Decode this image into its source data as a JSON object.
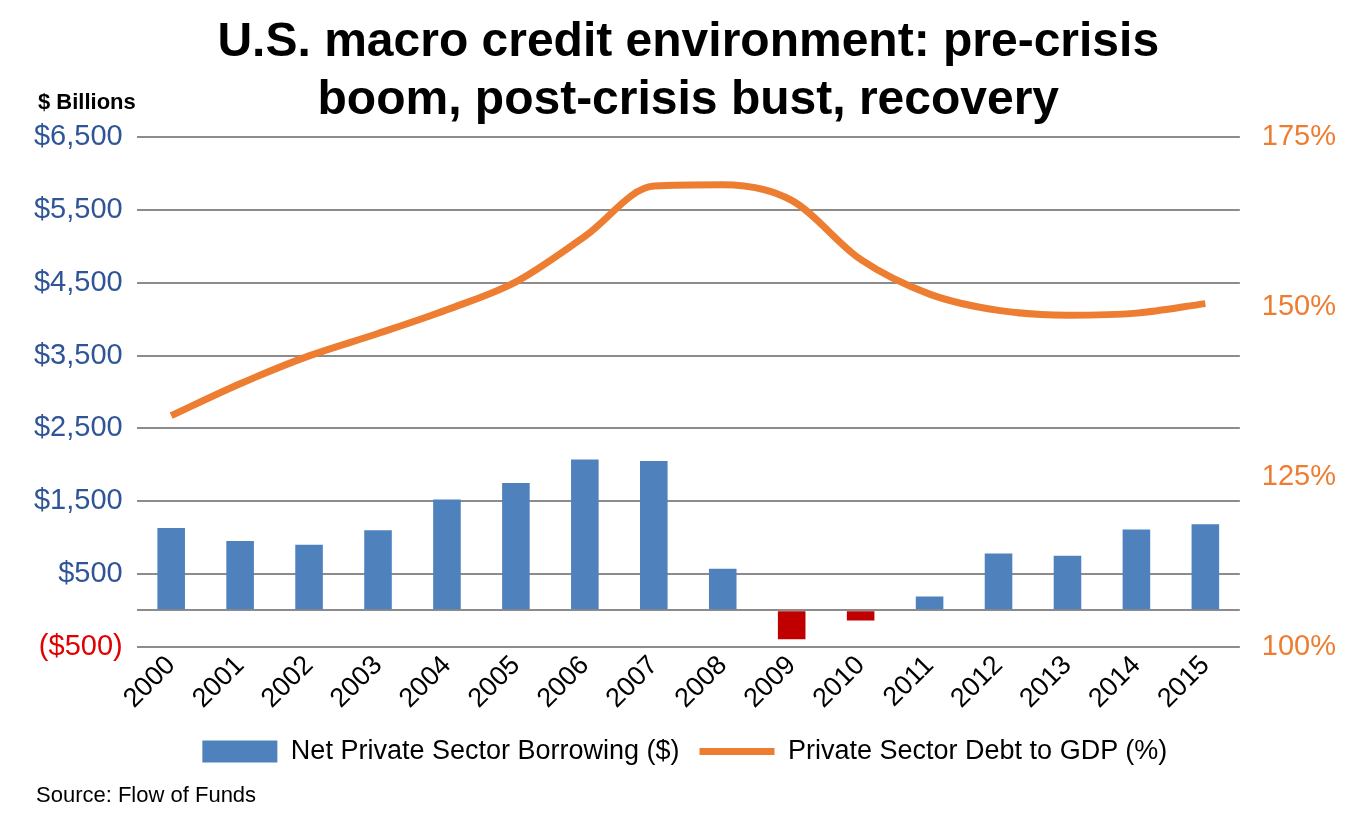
{
  "chart_data": {
    "type": "bar",
    "title": "U.S. macro credit environment: pre-crisis boom, post-crisis bust, recovery",
    "ylabel": "$ Billions",
    "categories": [
      "2000",
      "2001",
      "2002",
      "2003",
      "2004",
      "2005",
      "2006",
      "2007",
      "2008",
      "2009",
      "2010",
      "2011",
      "2012",
      "2013",
      "2014",
      "2015"
    ],
    "series": [
      {
        "name": "Net Private Sector Borrowing ($)",
        "color": "#4f81bd",
        "colors": [
          "#4f81bd",
          "#4f81bd",
          "#4f81bd",
          "#4f81bd",
          "#4f81bd",
          "#4f81bd",
          "#4f81bd",
          "#4f81bd",
          "#4f81bd",
          "#c00000",
          "#c00000",
          "#4f81bd",
          "#4f81bd",
          "#4f81bd",
          "#4f81bd",
          "#4f81bd"
        ],
        "values": [
          1130,
          950,
          900,
          1100,
          1520,
          1750,
          2070,
          2050,
          570,
          -400,
          -140,
          190,
          780,
          750,
          1110,
          1180
        ]
      },
      {
        "name": "Private Sector Debt to GDP (%)",
        "type": "line",
        "axis": "y2",
        "color": "#ed7d31",
        "values": [
          134.0,
          138.7,
          142.8,
          146.1,
          149.6,
          153.7,
          160.4,
          167.8,
          168.0,
          165.7,
          157.0,
          151.9,
          149.5,
          148.8,
          149.1,
          150.5
        ]
      }
    ],
    "ylim": [
      -500,
      6500
    ],
    "yticks": [
      {
        "value": -500,
        "label": "($500)"
      },
      {
        "value": 0,
        "label": null
      },
      {
        "value": 500,
        "label": "$500"
      },
      {
        "value": 1500,
        "label": "$1,500"
      },
      {
        "value": 2500,
        "label": "$2,500"
      },
      {
        "value": 3500,
        "label": "$3,500"
      },
      {
        "value": 4500,
        "label": "$4,500"
      },
      {
        "value": 5500,
        "label": "$5,500"
      },
      {
        "value": 6500,
        "label": "$6,500"
      }
    ],
    "y2lim": [
      100,
      175
    ],
    "y2ticks": [
      {
        "value": 100,
        "label": "100%"
      },
      {
        "value": 125,
        "label": "125%"
      },
      {
        "value": 150,
        "label": "150%"
      },
      {
        "value": 175,
        "label": "175%"
      }
    ],
    "grid": "y",
    "legend": "bottom",
    "marker": "none",
    "line_style": "solid",
    "annotations": [
      "Source: Flow of Funds"
    ]
  }
}
